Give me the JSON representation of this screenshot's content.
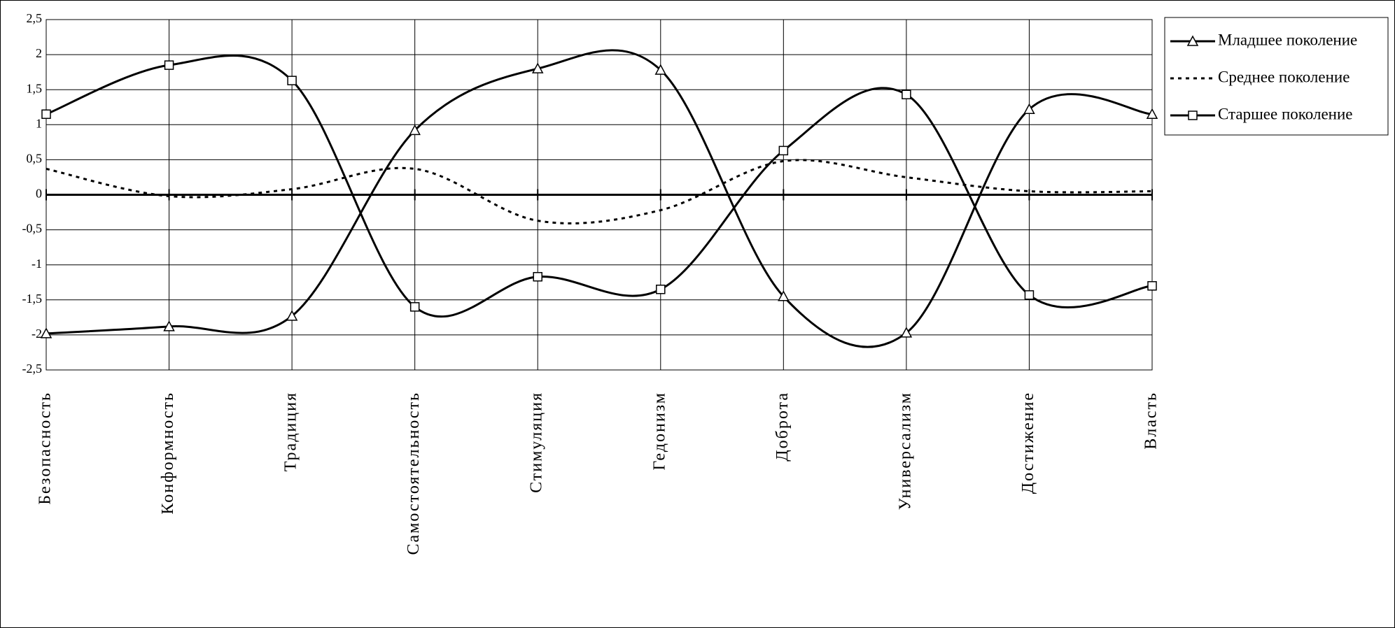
{
  "chart_data": {
    "type": "line",
    "categories": [
      "Безопасность",
      "Конформность",
      "Традиция",
      "Самостоятельность",
      "Стимуляция",
      "Гедонизм",
      "Доброта",
      "Универсализм",
      "Достижение",
      "Власть"
    ],
    "series": [
      {
        "name": "Младшее поколение",
        "color": "#000000",
        "style": "solid",
        "marker": "triangle",
        "values": [
          -1.98,
          -1.88,
          -1.73,
          0.92,
          1.8,
          1.78,
          -1.45,
          -1.97,
          1.22,
          1.15
        ]
      },
      {
        "name": "Среднее поколение",
        "color": "#000000",
        "style": "dotted",
        "marker": "none",
        "values": [
          0.37,
          -0.02,
          0.08,
          0.37,
          -0.37,
          -0.22,
          0.48,
          0.25,
          0.05,
          0.05
        ]
      },
      {
        "name": "Старшее поколение",
        "color": "#000000",
        "style": "solid",
        "marker": "square",
        "values": [
          1.15,
          1.85,
          1.63,
          -1.6,
          -1.17,
          -1.35,
          0.63,
          1.43,
          -1.43,
          -1.3
        ]
      }
    ],
    "ylim": [
      -2.5,
      2.5
    ],
    "yticks": [
      {
        "value": -2.5,
        "label": "-2,5"
      },
      {
        "value": -2,
        "label": "-2"
      },
      {
        "value": -1.5,
        "label": "-1,5"
      },
      {
        "value": -1,
        "label": "-1"
      },
      {
        "value": -0.5,
        "label": "-0,5"
      },
      0,
      {
        "value": 0.5,
        "label": "0,5"
      },
      {
        "value": 1,
        "label": "1"
      },
      {
        "value": 1.5,
        "label": "1,5"
      },
      {
        "value": 2,
        "label": "2"
      },
      {
        "value": 2.5,
        "label": "2,5"
      }
    ],
    "grid": true,
    "legend": "right",
    "smooth": true
  }
}
